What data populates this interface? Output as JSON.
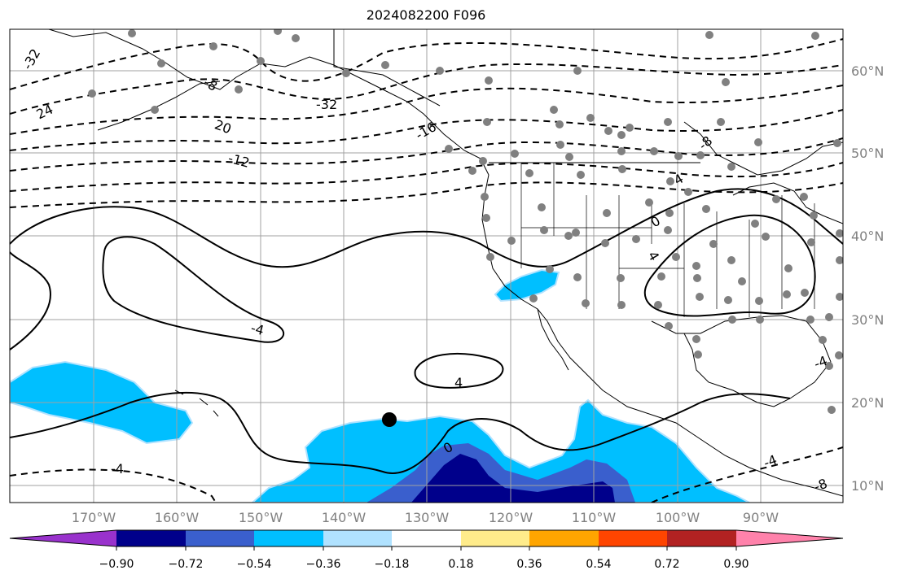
{
  "title": "2024082200 F096",
  "map": {
    "lon_labels": [
      "170°W",
      "160°W",
      "150°W",
      "140°W",
      "130°W",
      "120°W",
      "110°W",
      "100°W",
      "90°W"
    ],
    "lat_labels": [
      "60°N",
      "50°N",
      "40°N",
      "30°N",
      "20°N",
      "10°N"
    ],
    "contour_labels": [
      "-32",
      "-32",
      "24",
      "20",
      "-12",
      "-16",
      "-8",
      "-8",
      "4",
      "-4",
      "-4",
      "4",
      "0",
      "0",
      "4",
      "-4",
      "-4",
      "-8"
    ],
    "gridline_color": "#a0a0a0",
    "marker": {
      "color": "#000000",
      "lon": -134.0,
      "lat": 17.8
    }
  },
  "colorbar": {
    "ticks": [
      "−0.90",
      "−0.72",
      "−0.54",
      "−0.36",
      "−0.18",
      "0.18",
      "0.36",
      "0.54",
      "0.72",
      "0.90"
    ],
    "colors": [
      "#9932cc",
      "#00008b",
      "#3a5fcd",
      "#00bfff",
      "#b0e2ff",
      "#ffffff",
      "#ffec8b",
      "#ffa500",
      "#ff4500",
      "#b22222",
      "#ff82ab"
    ]
  }
}
